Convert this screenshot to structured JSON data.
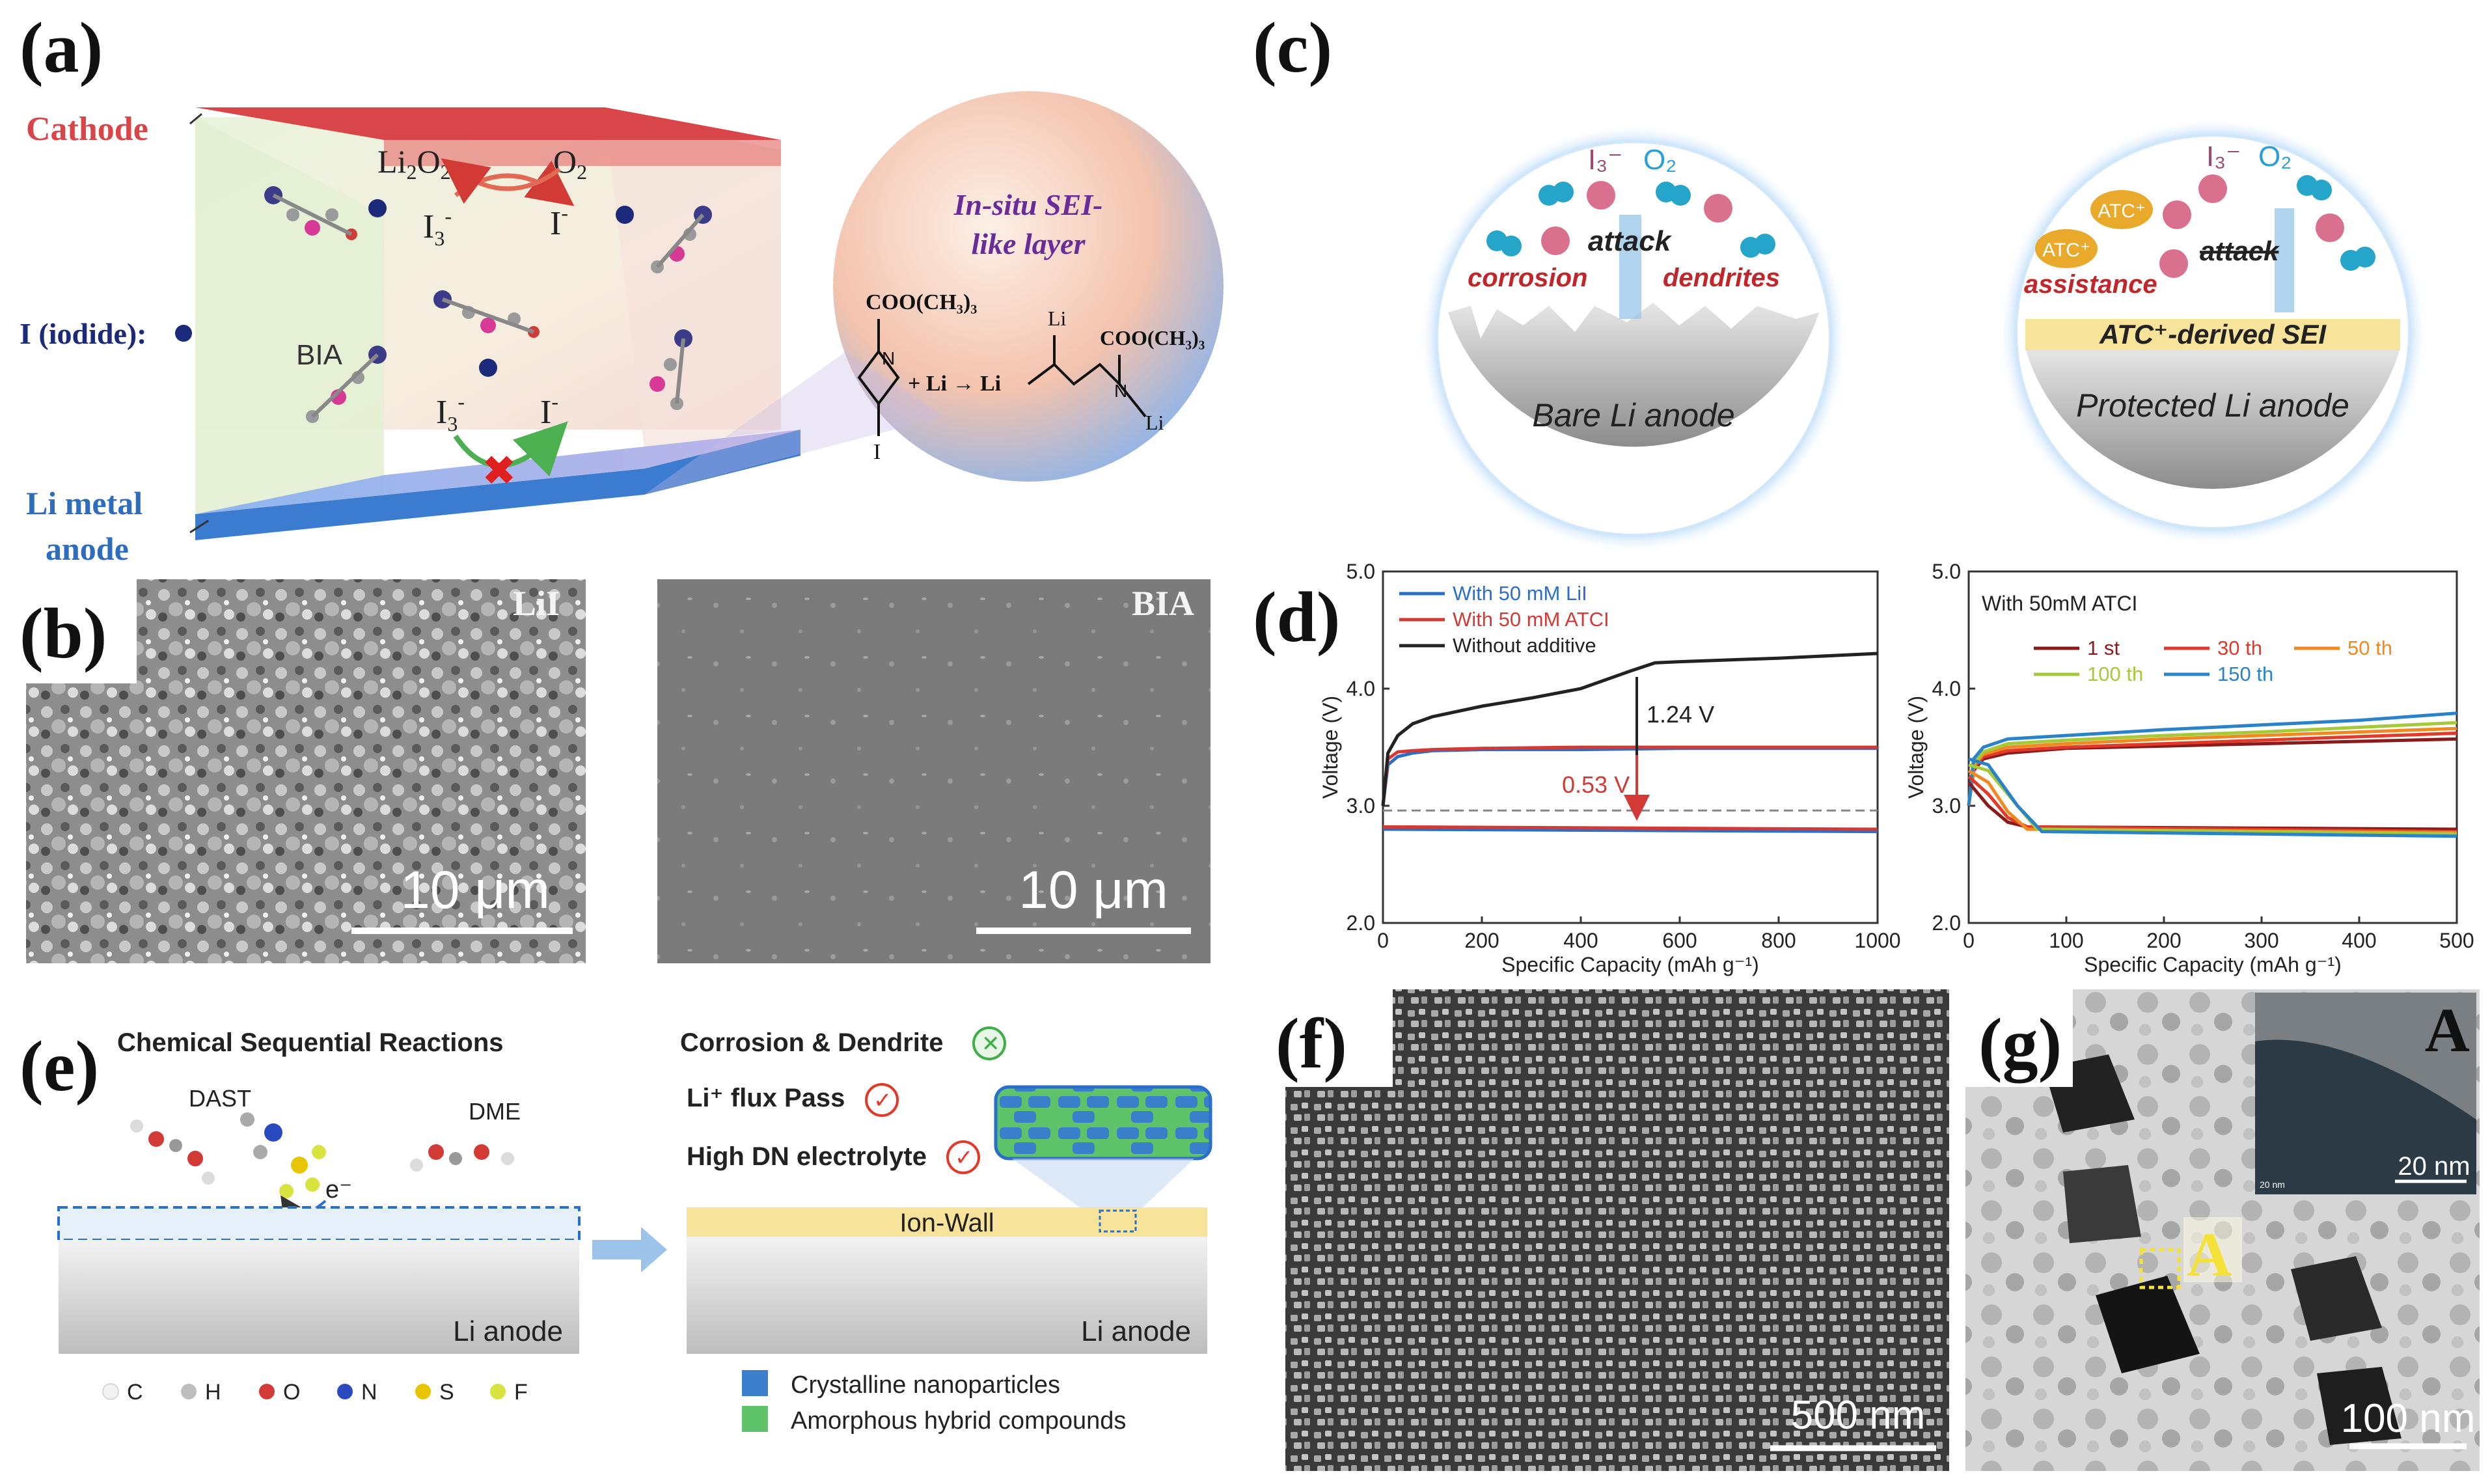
{
  "panels": {
    "a": {
      "letter": "(a)",
      "cathode": "Cathode",
      "iodide": "I (iodide):",
      "anode_line1": "Li metal",
      "anode_line2": "anode",
      "li2o2": "Li",
      "li2o2_sub": "2",
      "li2o2_o": "O",
      "li2o2_sub2": "2",
      "o2": "O",
      "o2_sub": "2",
      "i3": "I",
      "i3_sub": "3",
      "i3_sup": "-",
      "i_minus": "I",
      "i_minus_sup": "-",
      "bia": "BIA",
      "sei_line1": "In-situ SEI-",
      "sei_line2": "like layer",
      "chem_coo": "COO(CH₃)₃",
      "chem_i": "I",
      "chem_li": "Li",
      "chem_plus": "+ Li → Li",
      "chem_li2": "Li"
    },
    "b": {
      "letter": "(b)",
      "left_label": "LiI",
      "right_label": "BIA",
      "scale_left": "10 μm",
      "scale_right": "10 μm"
    },
    "c": {
      "letter": "(c)",
      "left": {
        "i3": "I₃⁻",
        "o2": "O₂",
        "attack": "attack",
        "corrosion": "corrosion",
        "dendrites": "dendrites",
        "bottom": "Bare Li anode"
      },
      "right": {
        "i3": "I₃⁻",
        "o2": "O₂",
        "atc": "ATC⁺",
        "attack": "attack",
        "assistance": "assistance",
        "sei": "ATC⁺-derived SEI",
        "bottom": "Protected Li anode"
      }
    },
    "d": {
      "letter": "(d)"
    },
    "e": {
      "letter": "(e)",
      "title": "Chemical Sequential Reactions",
      "dast": "DAST",
      "dme": "DME",
      "electron": "e⁻",
      "li_anode_left": "Li anode",
      "li_anode_right": "Li anode",
      "corrosion": "Corrosion & Dendrite",
      "flux": "Li⁺ flux Pass",
      "high_dn": "High DN electrolyte",
      "ion_wall": "Ion-Wall",
      "legend_atoms": [
        "C",
        "H",
        "O",
        "N",
        "S",
        "F"
      ],
      "legend_cryst": "Crystalline nanoparticles",
      "legend_amorph": "Amorphous hybrid compounds"
    },
    "f": {
      "letter": "(f)",
      "scale": "500 nm"
    },
    "g": {
      "letter": "(g)",
      "inset_label": "A",
      "inset_scale": "20 nm",
      "inset_tiny": "20 nm",
      "marker": "A",
      "scale": "100 nm"
    }
  },
  "colors": {
    "cathode": "#d9464a",
    "anode": "#3b7bd0",
    "navy": "#1b2a7a",
    "purple": "#6a2c9a",
    "red_text": "#c0262a",
    "li_red": "#c0262a",
    "blue_line": "#2a6fc9",
    "black_line": "#222222"
  },
  "chart_data": [
    {
      "type": "line",
      "panel": "d-left",
      "xlabel": "Specific Capacity (mAh g⁻¹)",
      "ylabel": "Voltage (V)",
      "xlim": [
        0,
        1000
      ],
      "ylim": [
        2.0,
        5.0
      ],
      "xticks": [
        "0",
        "200",
        "400",
        "600",
        "800",
        "1000"
      ],
      "yticks": [
        "2.0",
        "3.0",
        "4.0",
        "5.0"
      ],
      "legend": [
        "With 50 mM LiI",
        "With 50 mM ATCI",
        "Without additive"
      ],
      "annotations": [
        "1.24 V",
        "0.53 V"
      ],
      "series": [
        {
          "name": "With 50 mM LiI",
          "color": "#2a6fc9",
          "x": [
            0,
            10,
            30,
            60,
            100,
            200,
            400,
            600,
            800,
            1000
          ],
          "y": [
            3.0,
            3.35,
            3.42,
            3.45,
            3.47,
            3.48,
            3.48,
            3.49,
            3.49,
            3.49
          ]
        },
        {
          "name": "With 50 mM ATCI",
          "color": "#d23a35",
          "x": [
            0,
            10,
            30,
            60,
            100,
            200,
            400,
            600,
            800,
            1000
          ],
          "y": [
            3.0,
            3.4,
            3.46,
            3.47,
            3.48,
            3.49,
            3.5,
            3.5,
            3.5,
            3.5
          ]
        },
        {
          "name": "Without additive",
          "color": "#222222",
          "x": [
            0,
            10,
            30,
            60,
            100,
            200,
            300,
            400,
            500,
            550,
            600,
            800,
            1000
          ],
          "y": [
            3.0,
            3.45,
            3.6,
            3.7,
            3.76,
            3.85,
            3.92,
            4.0,
            4.15,
            4.22,
            4.23,
            4.26,
            4.3
          ]
        },
        {
          "name": "With 50 mM LiI",
          "color": "#2a6fc9",
          "x": [
            0,
            1000
          ],
          "y": [
            2.8,
            2.78
          ]
        },
        {
          "name": "With 50 mM ATCI",
          "color": "#d23a35",
          "x": [
            0,
            1000
          ],
          "y": [
            2.82,
            2.8
          ]
        },
        {
          "name": "reference",
          "color": "#888888",
          "dashed": true,
          "x": [
            0,
            1000
          ],
          "y": [
            2.96,
            2.96
          ]
        }
      ]
    },
    {
      "type": "line",
      "panel": "d-right",
      "title": "With 50mM ATCI",
      "xlabel": "Specific Capacity (mAh g⁻¹)",
      "ylabel": "Voltage (V)",
      "xlim": [
        0,
        500
      ],
      "ylim": [
        2.0,
        5.0
      ],
      "xticks": [
        "0",
        "100",
        "200",
        "300",
        "400",
        "500"
      ],
      "yticks": [
        "2.0",
        "3.0",
        "4.0",
        "5.0"
      ],
      "legend": [
        "1 st",
        "30 th",
        "50 th",
        "100 th",
        "150 th"
      ],
      "series": [
        {
          "name": "1 st",
          "color": "#8b1a1a",
          "x": [
            0,
            5,
            15,
            40,
            100,
            200,
            300,
            400,
            500
          ],
          "y": [
            3.0,
            3.3,
            3.4,
            3.45,
            3.49,
            3.51,
            3.53,
            3.55,
            3.57
          ]
        },
        {
          "name": "30 th",
          "color": "#e23a2a",
          "x": [
            0,
            5,
            15,
            40,
            100,
            200,
            300,
            400,
            500
          ],
          "y": [
            3.0,
            3.32,
            3.42,
            3.47,
            3.5,
            3.53,
            3.56,
            3.59,
            3.62
          ]
        },
        {
          "name": "50 th",
          "color": "#f08a20",
          "x": [
            0,
            5,
            15,
            40,
            100,
            200,
            300,
            400,
            500
          ],
          "y": [
            3.0,
            3.34,
            3.44,
            3.5,
            3.53,
            3.57,
            3.6,
            3.63,
            3.66
          ]
        },
        {
          "name": "100 th",
          "color": "#a6c93a",
          "x": [
            0,
            5,
            15,
            40,
            100,
            200,
            300,
            400,
            500
          ],
          "y": [
            3.0,
            3.36,
            3.46,
            3.53,
            3.56,
            3.6,
            3.63,
            3.67,
            3.71
          ]
        },
        {
          "name": "150 th",
          "color": "#2a82c9",
          "x": [
            0,
            5,
            15,
            40,
            100,
            200,
            300,
            400,
            500
          ],
          "y": [
            3.0,
            3.4,
            3.5,
            3.57,
            3.6,
            3.65,
            3.69,
            3.73,
            3.79
          ]
        },
        {
          "name": "1 st",
          "color": "#8b1a1a",
          "x": [
            0,
            20,
            40,
            60,
            500
          ],
          "y": [
            3.2,
            3.0,
            2.86,
            2.82,
            2.8
          ]
        },
        {
          "name": "30 th",
          "color": "#e23a2a",
          "x": [
            0,
            20,
            40,
            60,
            500
          ],
          "y": [
            3.25,
            3.1,
            2.9,
            2.82,
            2.78
          ]
        },
        {
          "name": "50 th",
          "color": "#f08a20",
          "x": [
            0,
            20,
            40,
            60,
            500
          ],
          "y": [
            3.3,
            3.2,
            2.95,
            2.8,
            2.77
          ]
        },
        {
          "name": "100 th",
          "color": "#a6c93a",
          "x": [
            0,
            20,
            40,
            70,
            500
          ],
          "y": [
            3.35,
            3.3,
            3.1,
            2.8,
            2.76
          ]
        },
        {
          "name": "150 th",
          "color": "#2a82c9",
          "x": [
            0,
            20,
            50,
            75,
            500
          ],
          "y": [
            3.4,
            3.35,
            3.0,
            2.78,
            2.74
          ]
        }
      ]
    }
  ]
}
